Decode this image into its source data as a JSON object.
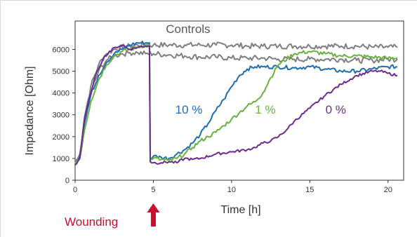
{
  "chart_data": {
    "type": "line",
    "xlabel": "Time [h]",
    "ylabel": "Impedance [Ohm]",
    "xlim": [
      0,
      21
    ],
    "ylim": [
      0,
      7300
    ],
    "xticks": [
      0,
      5,
      10,
      15,
      20
    ],
    "yticks": [
      0,
      1000,
      2000,
      3000,
      4000,
      5000,
      6000
    ],
    "grid": false,
    "colors": {
      "controls": "#7f7f7f",
      "ten_percent": "#1f6db3",
      "one_percent": "#6ab23e",
      "zero_percent": "#6e2b8f",
      "annotation": "#c8102e"
    },
    "annotations": [
      {
        "text": "Controls",
        "x": 5.8,
        "y": 6750,
        "color": "#595959"
      },
      {
        "text": "10 %",
        "x": 6.4,
        "y": 3050,
        "color": "#1f6db3"
      },
      {
        "text": "1 %",
        "x": 11.5,
        "y": 3050,
        "color": "#6ab23e"
      },
      {
        "text": "0 %",
        "x": 16.0,
        "y": 3050,
        "color": "#6e2b8f"
      }
    ],
    "wounding": {
      "text": "Wounding",
      "x": 5,
      "color": "#c8102e"
    },
    "series": [
      {
        "key": "controls",
        "noise": 130,
        "x": [
          0,
          0.3,
          0.6,
          1,
          1.5,
          2,
          2.5,
          3,
          3.5,
          4,
          4.5,
          5,
          6,
          7,
          8,
          9,
          10,
          11,
          12,
          13,
          14,
          15,
          16,
          17,
          18,
          19,
          20,
          20.6
        ],
        "y": [
          700,
          1200,
          2900,
          4300,
          5300,
          5800,
          6000,
          6100,
          6150,
          6200,
          6200,
          6200,
          6200,
          6200,
          6200,
          6200,
          6200,
          6150,
          6150,
          6150,
          6150,
          6150,
          6150,
          6150,
          6150,
          6100,
          6100,
          6100
        ]
      },
      {
        "key": "controls",
        "noise": 130,
        "x": [
          0,
          0.3,
          0.6,
          1,
          1.5,
          2,
          2.5,
          3,
          3.5,
          4,
          4.5,
          5,
          6,
          7,
          8,
          9,
          10,
          11,
          12,
          13,
          14,
          15,
          16,
          17,
          18,
          19,
          20,
          20.6
        ],
        "y": [
          750,
          1100,
          2700,
          4000,
          5000,
          5500,
          5700,
          5800,
          5850,
          5850,
          5800,
          5800,
          5750,
          5700,
          5650,
          5650,
          5600,
          5600,
          5600,
          5550,
          5550,
          5550,
          5550,
          5550,
          5500,
          5500,
          5550,
          5550
        ]
      },
      {
        "key": "ten_percent",
        "noise": 90,
        "x": [
          0,
          0.3,
          0.6,
          1,
          1.5,
          2,
          2.5,
          3,
          3.5,
          4,
          4.5,
          4.75,
          4.8,
          5,
          5.5,
          6,
          6.5,
          7,
          7.5,
          8,
          8.5,
          9,
          9.5,
          10,
          10.5,
          11,
          11.5,
          12,
          13,
          14,
          15,
          16,
          17,
          18,
          19,
          20,
          20.6
        ],
        "y": [
          700,
          1100,
          2600,
          3900,
          4800,
          5400,
          5800,
          6000,
          6200,
          6300,
          6300,
          6300,
          1000,
          1100,
          1050,
          1000,
          1200,
          1400,
          1700,
          2100,
          2600,
          3200,
          3700,
          4300,
          4800,
          5100,
          5200,
          5200,
          5200,
          5150,
          5200,
          5100,
          5000,
          5000,
          5100,
          5200,
          5200
        ]
      },
      {
        "key": "one_percent",
        "noise": 90,
        "x": [
          0,
          0.3,
          0.6,
          1,
          1.5,
          2,
          2.5,
          3,
          3.5,
          4,
          4.5,
          4.75,
          4.8,
          5,
          5.5,
          6,
          6.5,
          7,
          7.5,
          8,
          8.5,
          9,
          9.5,
          10,
          10.5,
          11,
          11.5,
          12,
          12.5,
          13,
          14,
          15,
          16,
          17,
          18,
          19,
          20,
          20.6
        ],
        "y": [
          800,
          1000,
          2300,
          3600,
          4600,
          5300,
          5700,
          5900,
          6000,
          6100,
          6200,
          6200,
          1000,
          1000,
          950,
          900,
          1000,
          1200,
          1500,
          1800,
          2000,
          2200,
          2500,
          2800,
          3100,
          3400,
          3600,
          4000,
          4700,
          5300,
          5800,
          5900,
          5800,
          5700,
          5700,
          5650,
          5600,
          5600
        ]
      },
      {
        "key": "zero_percent",
        "noise": 60,
        "x": [
          0,
          0.3,
          0.6,
          1,
          1.4,
          1.8,
          2.2,
          2.6,
          3,
          3.5,
          4,
          4.5,
          4.75,
          4.8,
          5,
          5.5,
          6,
          6.5,
          7,
          7.5,
          8,
          9,
          10,
          11,
          11.5,
          12,
          12.5,
          13,
          13.5,
          14,
          15,
          16,
          17,
          18,
          19,
          19.5,
          20,
          20.6
        ],
        "y": [
          700,
          1000,
          2800,
          4000,
          5000,
          5600,
          5900,
          6100,
          6200,
          6000,
          6100,
          6150,
          6150,
          850,
          800,
          800,
          850,
          800,
          1000,
          950,
          1000,
          1200,
          1300,
          1400,
          1500,
          1700,
          1800,
          2000,
          2300,
          2700,
          3300,
          3900,
          4400,
          4800,
          5000,
          5000,
          4900,
          4800
        ]
      }
    ]
  }
}
